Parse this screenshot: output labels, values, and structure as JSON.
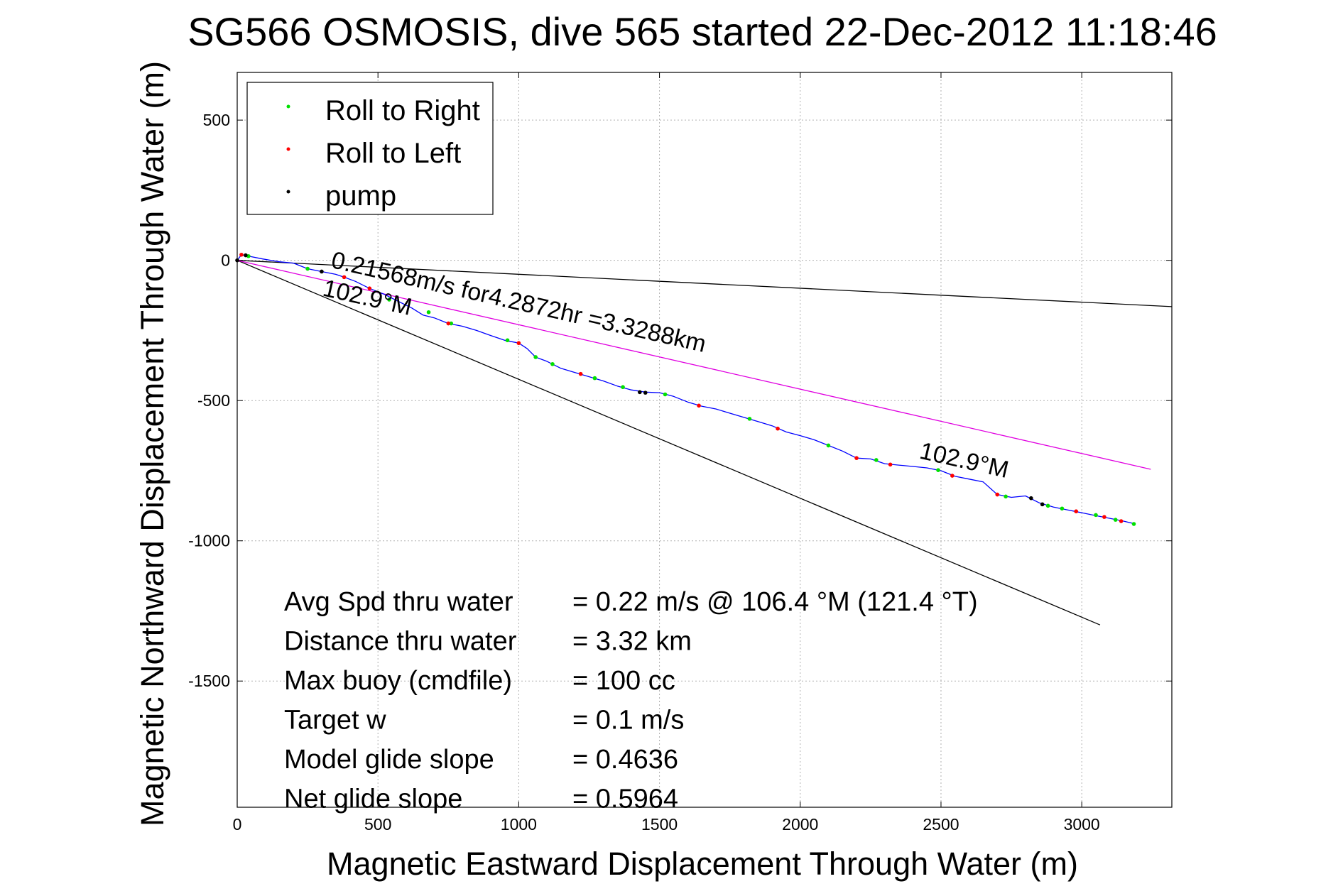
{
  "chart_data": {
    "type": "line",
    "title": "SG566 OSMOSIS, dive 565 started 22-Dec-2012 11:18:46",
    "xlabel": "Magnetic Eastward Displacement Through Water (m)",
    "ylabel": "Magnetic Northward Displacement Through Water (m)",
    "xlim": [
      0,
      3320
    ],
    "ylim": [
      -1950,
      670
    ],
    "xticks": [
      0,
      500,
      1000,
      1500,
      2000,
      2500,
      3000
    ],
    "yticks": [
      500,
      0,
      -500,
      -1000,
      -1500
    ],
    "grid": true,
    "legend": {
      "placement": "top-left",
      "entries": [
        {
          "label": "Roll to Right",
          "color": "#00e000"
        },
        {
          "label": "Roll to Left",
          "color": "#ff0000"
        },
        {
          "label": "pump",
          "color": "#000000"
        }
      ]
    },
    "reference_lines": [
      {
        "color": "#000000",
        "points": [
          [
            0,
            0
          ],
          [
            3320,
            -165
          ]
        ]
      },
      {
        "color": "#000000",
        "points": [
          [
            0,
            0
          ],
          [
            3065,
            -1300
          ]
        ]
      },
      {
        "color": "#e000e0",
        "points": [
          [
            0,
            0
          ],
          [
            3245,
            -745
          ]
        ]
      }
    ],
    "track": {
      "color": "#0000ff",
      "points": [
        [
          0,
          0
        ],
        [
          15,
          20
        ],
        [
          40,
          15
        ],
        [
          90,
          5
        ],
        [
          150,
          -5
        ],
        [
          200,
          -10
        ],
        [
          250,
          -30
        ],
        [
          300,
          -40
        ],
        [
          350,
          -50
        ],
        [
          380,
          -60
        ],
        [
          420,
          -75
        ],
        [
          470,
          -100
        ],
        [
          520,
          -120
        ],
        [
          570,
          -145
        ],
        [
          620,
          -170
        ],
        [
          660,
          -195
        ],
        [
          700,
          -205
        ],
        [
          750,
          -225
        ],
        [
          800,
          -235
        ],
        [
          850,
          -250
        ],
        [
          900,
          -268
        ],
        [
          950,
          -285
        ],
        [
          1000,
          -295
        ],
        [
          1030,
          -315
        ],
        [
          1060,
          -345
        ],
        [
          1100,
          -360
        ],
        [
          1150,
          -385
        ],
        [
          1200,
          -400
        ],
        [
          1250,
          -415
        ],
        [
          1300,
          -430
        ],
        [
          1350,
          -448
        ],
        [
          1400,
          -462
        ],
        [
          1450,
          -470
        ],
        [
          1500,
          -472
        ],
        [
          1550,
          -485
        ],
        [
          1600,
          -505
        ],
        [
          1650,
          -520
        ],
        [
          1700,
          -530
        ],
        [
          1750,
          -545
        ],
        [
          1800,
          -560
        ],
        [
          1850,
          -575
        ],
        [
          1900,
          -590
        ],
        [
          1950,
          -612
        ],
        [
          2000,
          -625
        ],
        [
          2050,
          -640
        ],
        [
          2100,
          -660
        ],
        [
          2150,
          -680
        ],
        [
          2200,
          -705
        ],
        [
          2250,
          -708
        ],
        [
          2300,
          -725
        ],
        [
          2350,
          -730
        ],
        [
          2400,
          -735
        ],
        [
          2450,
          -740
        ],
        [
          2500,
          -750
        ],
        [
          2550,
          -770
        ],
        [
          2600,
          -780
        ],
        [
          2650,
          -790
        ],
        [
          2700,
          -835
        ],
        [
          2750,
          -845
        ],
        [
          2800,
          -840
        ],
        [
          2850,
          -865
        ],
        [
          2900,
          -880
        ],
        [
          2950,
          -890
        ],
        [
          3000,
          -900
        ],
        [
          3050,
          -910
        ],
        [
          3100,
          -920
        ],
        [
          3150,
          -930
        ],
        [
          3190,
          -940
        ]
      ]
    },
    "markers": {
      "roll_right": [
        [
          40,
          15
        ],
        [
          250,
          -30
        ],
        [
          540,
          -140
        ],
        [
          680,
          -185
        ],
        [
          760,
          -225
        ],
        [
          960,
          -285
        ],
        [
          1060,
          -345
        ],
        [
          1120,
          -370
        ],
        [
          1270,
          -420
        ],
        [
          1370,
          -452
        ],
        [
          1520,
          -478
        ],
        [
          1820,
          -565
        ],
        [
          2100,
          -660
        ],
        [
          2270,
          -712
        ],
        [
          2490,
          -748
        ],
        [
          2730,
          -842
        ],
        [
          2880,
          -875
        ],
        [
          2930,
          -885
        ],
        [
          3050,
          -908
        ],
        [
          3120,
          -925
        ],
        [
          3185,
          -940
        ]
      ],
      "roll_left": [
        [
          15,
          20
        ],
        [
          380,
          -60
        ],
        [
          470,
          -100
        ],
        [
          750,
          -225
        ],
        [
          1000,
          -295
        ],
        [
          1220,
          -405
        ],
        [
          1640,
          -518
        ],
        [
          1920,
          -600
        ],
        [
          2200,
          -705
        ],
        [
          2320,
          -728
        ],
        [
          2540,
          -768
        ],
        [
          2700,
          -835
        ],
        [
          2980,
          -895
        ],
        [
          3080,
          -915
        ],
        [
          3140,
          -930
        ]
      ],
      "pump": [
        [
          0,
          0
        ],
        [
          30,
          18
        ],
        [
          300,
          -40
        ],
        [
          1430,
          -470
        ],
        [
          1450,
          -472
        ],
        [
          2820,
          -848
        ],
        [
          2860,
          -870
        ]
      ]
    },
    "annotations": [
      {
        "text": "0.21568m/s for4.2872hr =3.3288km",
        "x": 330,
        "y": -25,
        "rotation": 12.8
      },
      {
        "text": "102.9°M",
        "x": 300,
        "y": -125,
        "rotation": 12.8
      },
      {
        "text": "102.9°M",
        "x": 2420,
        "y": -705,
        "rotation": 12.8
      }
    ],
    "stats": [
      {
        "label": "Avg Spd thru water",
        "value": "=  0.22 m/s @ 106.4 °M (121.4 °T)"
      },
      {
        "label": "Distance thru water",
        "value": "=  3.32 km"
      },
      {
        "label": "Max buoy (cmdfile)",
        "value": "= 100 cc"
      },
      {
        "label": "Target w",
        "value": "= 0.1 m/s"
      },
      {
        "label": "Model glide slope",
        "value": "= 0.4636"
      },
      {
        "label": "Net glide slope",
        "value": "= 0.5964"
      }
    ]
  }
}
